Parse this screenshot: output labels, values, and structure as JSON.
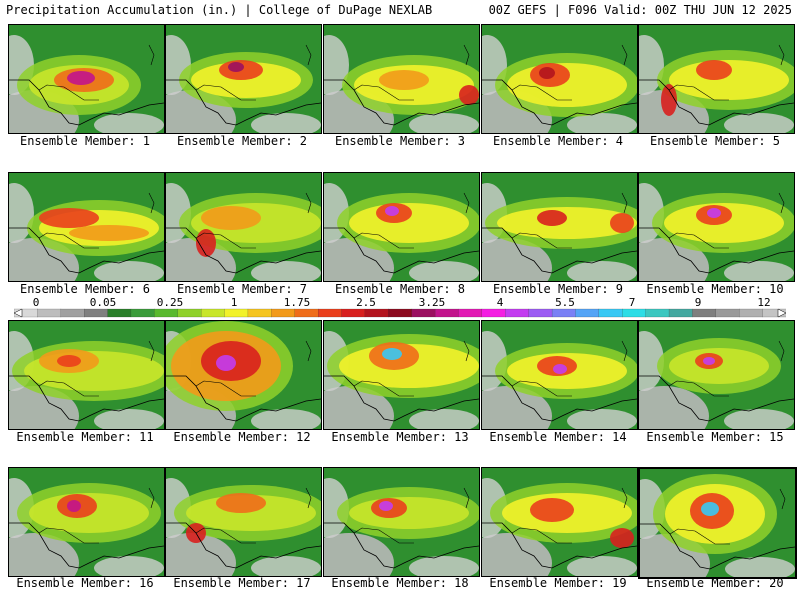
{
  "header": {
    "left_title": "Precipitation Accumulation (in.) | College of DuPage NEXLAB",
    "right_title": "00Z GEFS | F096 Valid: 00Z THU JUN 12 2025"
  },
  "colorbar": {
    "labels": [
      "0",
      "0.05",
      "0.25",
      "1",
      "1.75",
      "2.5",
      "3.25",
      "4",
      "5.5",
      "7",
      "9",
      "12"
    ],
    "colors": [
      "#d9d9d9",
      "#bdbdbd",
      "#a0a0a0",
      "#808080",
      "#2a7f2a",
      "#3a9b3a",
      "#59b92e",
      "#8fd12a",
      "#c8e62a",
      "#f2f22a",
      "#f5c51f",
      "#f29a1a",
      "#ef6d1a",
      "#ea3f1c",
      "#d8201e",
      "#b3141e",
      "#8c0a1e",
      "#9b1060",
      "#c2148c",
      "#e21ab4",
      "#f41ee2",
      "#c33cf0",
      "#9c5cf3",
      "#7a80f5",
      "#54a4f6",
      "#38c8f4",
      "#2cdde6",
      "#3bc7c0",
      "#44a8a0",
      "#7f7f7f",
      "#9a9a9a",
      "#b0b0b0",
      "#c4c4c4"
    ]
  },
  "members": [
    {
      "label": "Ensemble Member: 1"
    },
    {
      "label": "Ensemble Member: 2"
    },
    {
      "label": "Ensemble Member: 3"
    },
    {
      "label": "Ensemble Member: 4"
    },
    {
      "label": "Ensemble Member: 5"
    },
    {
      "label": "Ensemble Member: 6"
    },
    {
      "label": "Ensemble Member: 7"
    },
    {
      "label": "Ensemble Member: 8"
    },
    {
      "label": "Ensemble Member: 9"
    },
    {
      "label": "Ensemble Member: 10"
    },
    {
      "label": "Ensemble Member: 11"
    },
    {
      "label": "Ensemble Member: 12"
    },
    {
      "label": "Ensemble Member: 13"
    },
    {
      "label": "Ensemble Member: 14"
    },
    {
      "label": "Ensemble Member: 15"
    },
    {
      "label": "Ensemble Member: 16"
    },
    {
      "label": "Ensemble Member: 17"
    },
    {
      "label": "Ensemble Member: 18"
    },
    {
      "label": "Ensemble Member: 19"
    },
    {
      "label": "Ensemble Member: 20"
    }
  ]
}
